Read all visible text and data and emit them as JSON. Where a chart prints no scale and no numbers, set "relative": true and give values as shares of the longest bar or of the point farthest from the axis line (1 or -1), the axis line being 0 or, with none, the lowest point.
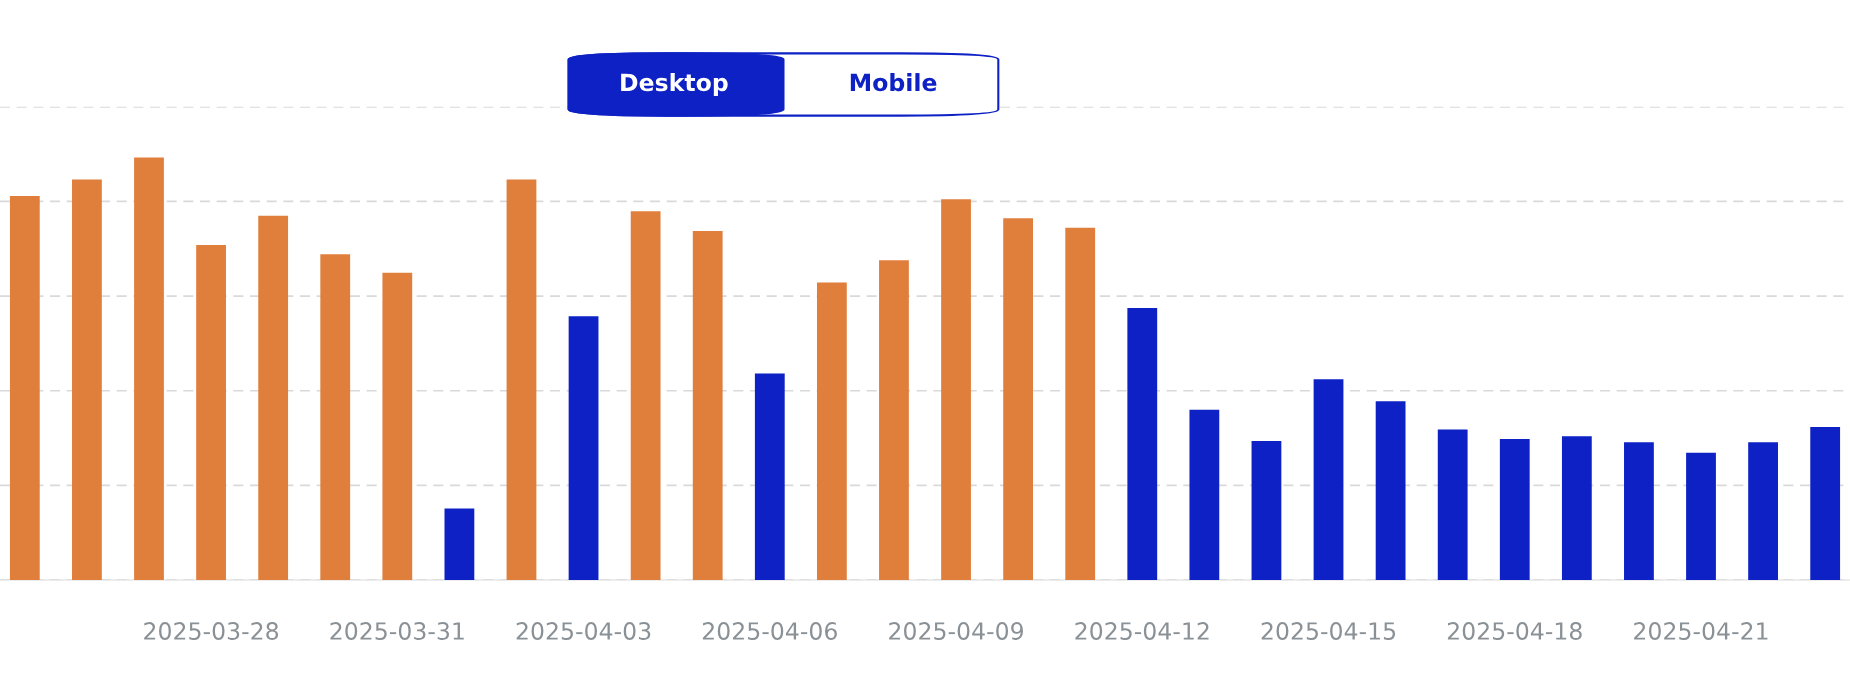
{
  "chart_data": {
    "type": "bar",
    "relative": true,
    "grid": "y",
    "categories": [
      null,
      null,
      null,
      "2025-03-28",
      null,
      null,
      "2025-03-31",
      null,
      null,
      "2025-04-03",
      null,
      null,
      "2025-04-06",
      null,
      null,
      "2025-04-09",
      null,
      null,
      "2025-04-12",
      null,
      null,
      "2025-04-15",
      null,
      null,
      "2025-04-18",
      null,
      null,
      "2025-04-21",
      null,
      null
    ],
    "values": [
      0.909,
      0.948,
      1,
      0.793,
      0.862,
      0.771,
      0.727,
      0.169,
      0.948,
      0.624,
      0.873,
      0.826,
      0.489,
      0.704,
      0.757,
      0.901,
      0.856,
      0.834,
      0.644,
      0.403,
      0.329,
      0.475,
      0.423,
      0.356,
      0.334,
      0.34,
      0.326,
      0.301,
      0.326,
      0.362
    ],
    "colors": [
      "#e07f3c",
      "#e07f3c",
      "#e07f3c",
      "#e07f3c",
      "#e07f3c",
      "#e07f3c",
      "#e07f3c",
      "#0d21c4",
      "#e07f3c",
      "#0d21c4",
      "#e07f3c",
      "#e07f3c",
      "#0d21c4",
      "#e07f3c",
      "#e07f3c",
      "#e07f3c",
      "#e07f3c",
      "#e07f3c",
      "#0d21c4",
      "#0d21c4",
      "#0d21c4",
      "#0d21c4",
      "#0d21c4",
      "#0d21c4",
      "#0d21c4",
      "#0d21c4",
      "#0d21c4",
      "#0d21c4",
      "#0d21c4",
      "#0d21c4"
    ],
    "annotations": [
      "Desktop",
      "Mobile"
    ]
  }
}
